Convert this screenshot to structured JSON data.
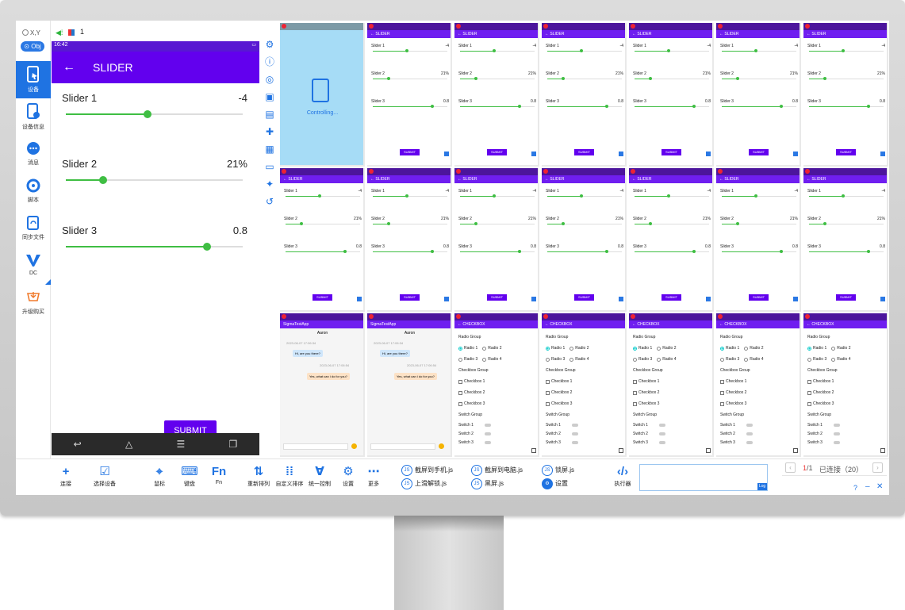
{
  "left_panel": {
    "xy_label": "X,Y",
    "obj_label": "Obj",
    "items": [
      {
        "label": "设备",
        "icon": "device-icon"
      },
      {
        "label": "设备信息",
        "icon": "device-info-icon"
      },
      {
        "label": "消息",
        "icon": "message-icon"
      },
      {
        "label": "脚本",
        "icon": "script-icon"
      },
      {
        "label": "同步文件",
        "icon": "sync-file-icon"
      },
      {
        "label": "DC",
        "icon": "dc-logo-icon"
      },
      {
        "label": "升级购买",
        "icon": "cart-icon"
      }
    ]
  },
  "phone_header": {
    "count": "1"
  },
  "phone": {
    "status_time": "16:42",
    "title": "SLIDER",
    "sliders": [
      {
        "label": "Slider 1",
        "value": "-4",
        "fraction": 0.46
      },
      {
        "label": "Slider 2",
        "value": "21%",
        "fraction": 0.21
      },
      {
        "label": "Slider 3",
        "value": "0.8",
        "fraction": 0.8
      }
    ],
    "submit": "SUBMIT"
  },
  "grid": {
    "controlling_text": "Controlling...",
    "slider_title": "SLIDER",
    "checkbox_title": "CHECKBOX",
    "chat_title": "SigmaTestApp",
    "chat_name": "Aaron",
    "chat_msg1": "Hi, are you there?",
    "chat_msg2": "Yes, what can i do for you?",
    "chat_date1": "2023-06-07 17:06:34",
    "chat_date2": "2023-06-07 17:06:54",
    "radio_group": "Radio Group",
    "radios": [
      "Radio 1",
      "Radio 2",
      "Radio 3",
      "Radio 4"
    ],
    "checkbox_group": "Checkbox Group",
    "checkboxes": [
      "Checkbox 1",
      "Checkbox 2",
      "Checkbox 3"
    ],
    "switch_group": "Switch Group",
    "switches": [
      "Switch 1",
      "Switch 2",
      "Switch 3"
    ],
    "submit": "SUBMIT"
  },
  "toolbar": {
    "connect": "连接",
    "select_device": "选择设备",
    "mouse": "鼠标",
    "keyboard": "键盘",
    "fn": "Fn",
    "rearrange": "重新排列",
    "custom_sort": "自定义排序",
    "unified_control": "统一控制",
    "settings": "设置",
    "more": "更多",
    "js1": "截屏到手机.js",
    "js2": "截屏到电脑.js",
    "js3": "锁屏.js",
    "js4": "上滑解锁.js",
    "js5": "黑屏.js",
    "js6": "设置",
    "executor": "执行器",
    "log": "Log",
    "page_current": "1",
    "page_total": "/1",
    "connected": "已连接（20）"
  },
  "colors": {
    "accent": "#1f73e2",
    "app_bar": "#6200ee",
    "slider": "#3fbe43"
  }
}
